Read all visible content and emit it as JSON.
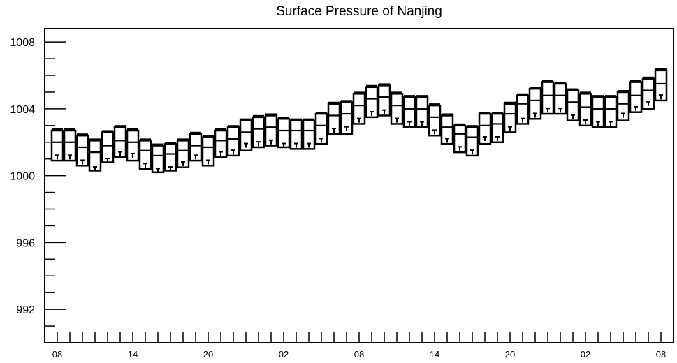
{
  "chart_data": {
    "type": "box",
    "title": "Surface Pressure of Nanjing",
    "xlabel": "",
    "ylabel": "",
    "ylim": [
      990,
      1008.8
    ],
    "yticks": [
      992,
      996,
      1000,
      1004,
      1008
    ],
    "ytick_labels": [
      "992",
      "996",
      "1000",
      "1004",
      "1008"
    ],
    "xtick_labels": [
      "08",
      "14",
      "20",
      "02",
      "08",
      "14",
      "20",
      "02",
      "08"
    ],
    "grid": false,
    "series": [
      {
        "low": [
          1000.9,
          1000.9,
          1000.6,
          1000.3,
          1000.8,
          1001.1,
          1000.9,
          1000.4,
          1000.2,
          1000.3,
          1000.5,
          1000.9,
          1000.6,
          1001.1,
          1001.2,
          1001.5,
          1001.7,
          1001.8,
          1001.7,
          1001.6,
          1001.6,
          1001.9,
          1002.5,
          1002.5,
          1003.1,
          1003.5,
          1003.6,
          1003.1,
          1002.9,
          1002.9,
          1002.4,
          1001.9,
          1001.4,
          1001.2,
          1001.9,
          1002.0,
          1002.6,
          1003.1,
          1003.4,
          1003.7,
          1003.7,
          1003.3,
          1003.0,
          1002.9,
          1002.9,
          1003.3,
          1003.8,
          1004.0,
          1004.5
        ],
        "mean": [
          1002.0,
          1002.0,
          1001.7,
          1001.4,
          1001.8,
          1002.1,
          1002.0,
          1001.5,
          1001.2,
          1001.3,
          1001.5,
          1001.8,
          1001.7,
          1002.1,
          1002.2,
          1002.6,
          1002.8,
          1002.9,
          1002.7,
          1002.7,
          1002.7,
          1003.0,
          1003.6,
          1003.7,
          1004.2,
          1004.6,
          1004.7,
          1004.2,
          1004.0,
          1004.0,
          1003.5,
          1002.9,
          1002.5,
          1002.3,
          1003.0,
          1003.1,
          1003.7,
          1004.3,
          1004.5,
          1004.8,
          1004.8,
          1004.4,
          1004.1,
          1004.0,
          1004.0,
          1004.3,
          1004.8,
          1005.1,
          1005.5
        ],
        "high": [
          1002.7,
          1002.7,
          1002.4,
          1002.1,
          1002.6,
          1002.9,
          1002.7,
          1002.1,
          1001.8,
          1001.9,
          1002.1,
          1002.5,
          1002.3,
          1002.7,
          1002.9,
          1003.3,
          1003.5,
          1003.6,
          1003.4,
          1003.3,
          1003.3,
          1003.7,
          1004.3,
          1004.4,
          1004.9,
          1005.3,
          1005.4,
          1004.9,
          1004.7,
          1004.7,
          1004.2,
          1003.6,
          1003.0,
          1002.9,
          1003.7,
          1003.7,
          1004.3,
          1004.8,
          1005.2,
          1005.6,
          1005.5,
          1005.1,
          1004.9,
          1004.7,
          1004.7,
          1005.0,
          1005.6,
          1005.8,
          1006.3
        ],
        "marker": [
          1001.1,
          1001.1,
          1000.8,
          1000.4,
          1000.9,
          1001.3,
          1001.2,
          1000.6,
          1000.3,
          1000.4,
          1000.7,
          1001.1,
          1000.8,
          1001.3,
          1001.4,
          1001.8,
          1001.9,
          1002.0,
          1001.8,
          1001.8,
          1001.8,
          1002.1,
          1002.7,
          1002.8,
          1003.3,
          1003.7,
          1003.8,
          1003.3,
          1003.1,
          1003.1,
          1002.6,
          1002.1,
          1001.6,
          1001.4,
          1002.2,
          1002.2,
          1002.8,
          1003.3,
          1003.6,
          1003.9,
          1003.9,
          1003.5,
          1003.2,
          1003.1,
          1003.1,
          1003.6,
          1004.0,
          1004.3,
          1004.7
        ]
      }
    ]
  }
}
